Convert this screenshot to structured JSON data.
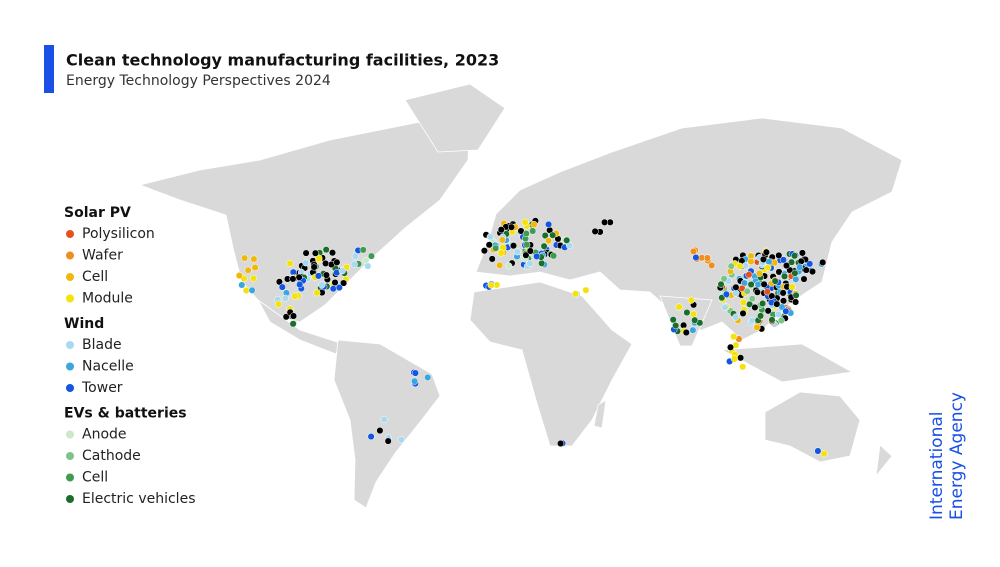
{
  "header": {
    "title": "Clean technology manufacturing facilities, 2023",
    "subtitle": "Energy Technology Perspectives 2024"
  },
  "legend": [
    {
      "title": "Solar PV",
      "items": [
        {
          "label": "Polysilicon",
          "color": "#e4531d"
        },
        {
          "label": "Wafer",
          "color": "#ef8e1f"
        },
        {
          "label": "Cell",
          "color": "#f1b80c"
        },
        {
          "label": "Module",
          "color": "#f4e20a"
        }
      ]
    },
    {
      "title": "Wind",
      "items": [
        {
          "label": "Blade",
          "color": "#a9d9f1"
        },
        {
          "label": "Nacelle",
          "color": "#3aa5df"
        },
        {
          "label": "Tower",
          "color": "#1456df"
        }
      ]
    },
    {
      "title": "EVs & batteries",
      "items": [
        {
          "label": "Anode",
          "color": "#c9e9c9"
        },
        {
          "label": "Cathode",
          "color": "#7dc48b"
        },
        {
          "label": "Cell",
          "color": "#3e9b4f"
        },
        {
          "label": "Electric vehicles",
          "color": "#1b6d2b"
        }
      ]
    }
  ],
  "logo": {
    "line1": "International",
    "line2": "Energy Agency"
  }
}
